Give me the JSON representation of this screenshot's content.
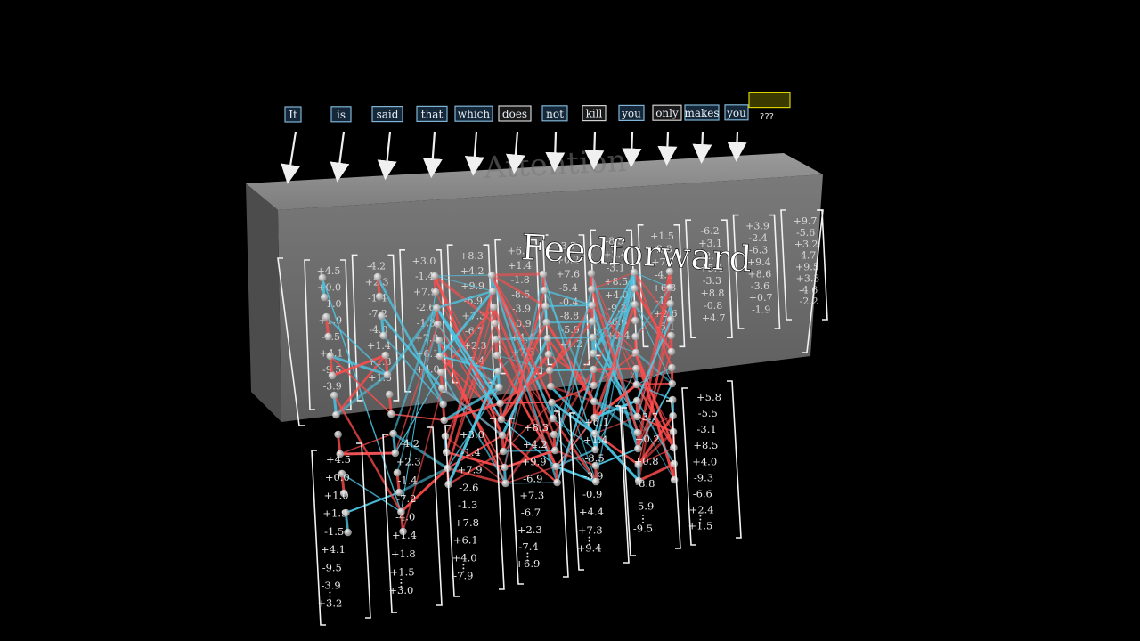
{
  "tokens": [
    {
      "label": "It",
      "style": "blue"
    },
    {
      "label": "is",
      "style": "blue"
    },
    {
      "label": "said",
      "style": "blue"
    },
    {
      "label": "that",
      "style": "blue"
    },
    {
      "label": "which",
      "style": "blue"
    },
    {
      "label": "does",
      "style": "grey"
    },
    {
      "label": "not",
      "style": "blue"
    },
    {
      "label": "kill",
      "style": "grey"
    },
    {
      "label": "you",
      "style": "blue"
    },
    {
      "label": "only",
      "style": "grey"
    },
    {
      "label": "makes",
      "style": "blue"
    },
    {
      "label": "you",
      "style": "blue"
    },
    {
      "label": "",
      "style": "yellow"
    }
  ],
  "next_token_label": "???",
  "block_labels": {
    "attention": "Attention",
    "feedforward": "Feedforward"
  },
  "colors": {
    "background": "#000000",
    "block_front": "#6b6b6b",
    "block_top": "#8a8a8a",
    "token_blue_border": "#7fb3d5",
    "token_blue_fill": "#14283a",
    "token_grey_border": "#d0d0d0",
    "token_yellow_border": "#d8d000",
    "token_yellow_fill": "#3a3a00",
    "edge_red": "#ff4d4d",
    "edge_cyan": "#4ec9e8",
    "neuron": "#e6e6e6"
  },
  "upper_vectors": [
    [
      "+4.5",
      "+0.0",
      "+1.0",
      "+1.9",
      "-1.5",
      "+4.1",
      "-9.5",
      "-3.9"
    ],
    [
      "-4.2",
      "+2.3",
      "-1.4",
      "-7.2",
      "-4.0",
      "+1.4",
      "+1.8",
      "+1.5"
    ],
    [
      "+3.0",
      "-1.4",
      "+7.9",
      "-2.6",
      "-1.3",
      "+7.8",
      "+6.1",
      "+4.0"
    ],
    [
      "+8.3",
      "+4.2",
      "+9.9",
      "-6.9",
      "+7.3",
      "-6.7",
      "+2.3",
      "-7.4"
    ],
    [
      "+6.1",
      "+1.4",
      "-1.8",
      "-8.5",
      "-3.9",
      "-0.9",
      "+4.4",
      "+7.3"
    ],
    [
      "-3.7",
      "+0.2",
      "+7.6",
      "-5.4",
      "-0.4",
      "-8.8",
      "-5.9",
      "+1.2"
    ],
    [
      "-8.5",
      "+2.4",
      "-3.1",
      "+8.5",
      "+4.0",
      "-9.3",
      "-6.6",
      "+2.4"
    ],
    [
      "+1.5",
      "-2.8",
      "+7.7",
      "-4.2",
      "+6.3",
      "-1.1",
      "+2.6",
      "-5.1"
    ],
    [
      "-6.2",
      "+3.1",
      "-2.7",
      "+5.4",
      "-3.3",
      "+8.8",
      "-0.8",
      "+4.7"
    ],
    [
      "+3.9",
      "-2.4",
      "-6.3",
      "+9.4",
      "+8.6",
      "-3.6",
      "+0.7",
      "-1.9"
    ],
    [
      "+9.7",
      "-5.6",
      "+3.2",
      "-4.7",
      "+9.5",
      "+3.3",
      "-4.6",
      "-2.2"
    ]
  ],
  "lower_vectors": [
    [
      "+4.5",
      "+0.0",
      "+1.0",
      "+1.9",
      "-1.5",
      "+4.1",
      "-9.5",
      "-3.9",
      "+3.2"
    ],
    [
      "-4.2",
      "+2.3",
      "-1.4",
      "-7.2",
      "-4.0",
      "+1.4",
      "+1.8",
      "+1.5",
      "+3.0"
    ],
    [
      "+3.0",
      "-1.4",
      "+7.9",
      "-2.6",
      "-1.3",
      "+7.8",
      "+6.1",
      "+4.0",
      "-7.9"
    ],
    [
      "+8.3",
      "+4.2",
      "+9.9",
      "-6.9",
      "+7.3",
      "-6.7",
      "+2.3",
      "-7.4",
      "+6.9"
    ],
    [
      "+6.1",
      "+1.4",
      "-8.5",
      "-3.9",
      "-0.9",
      "+4.4",
      "+7.3",
      "+9.4"
    ],
    [
      "-3.7",
      "+0.2",
      "+0.8",
      "-8.8",
      "-5.9",
      "-9.5"
    ],
    [
      "+5.8",
      "-5.5",
      "-3.1",
      "+8.5",
      "+4.0",
      "-9.3",
      "-6.6",
      "+2.4",
      "+1.5"
    ]
  ]
}
